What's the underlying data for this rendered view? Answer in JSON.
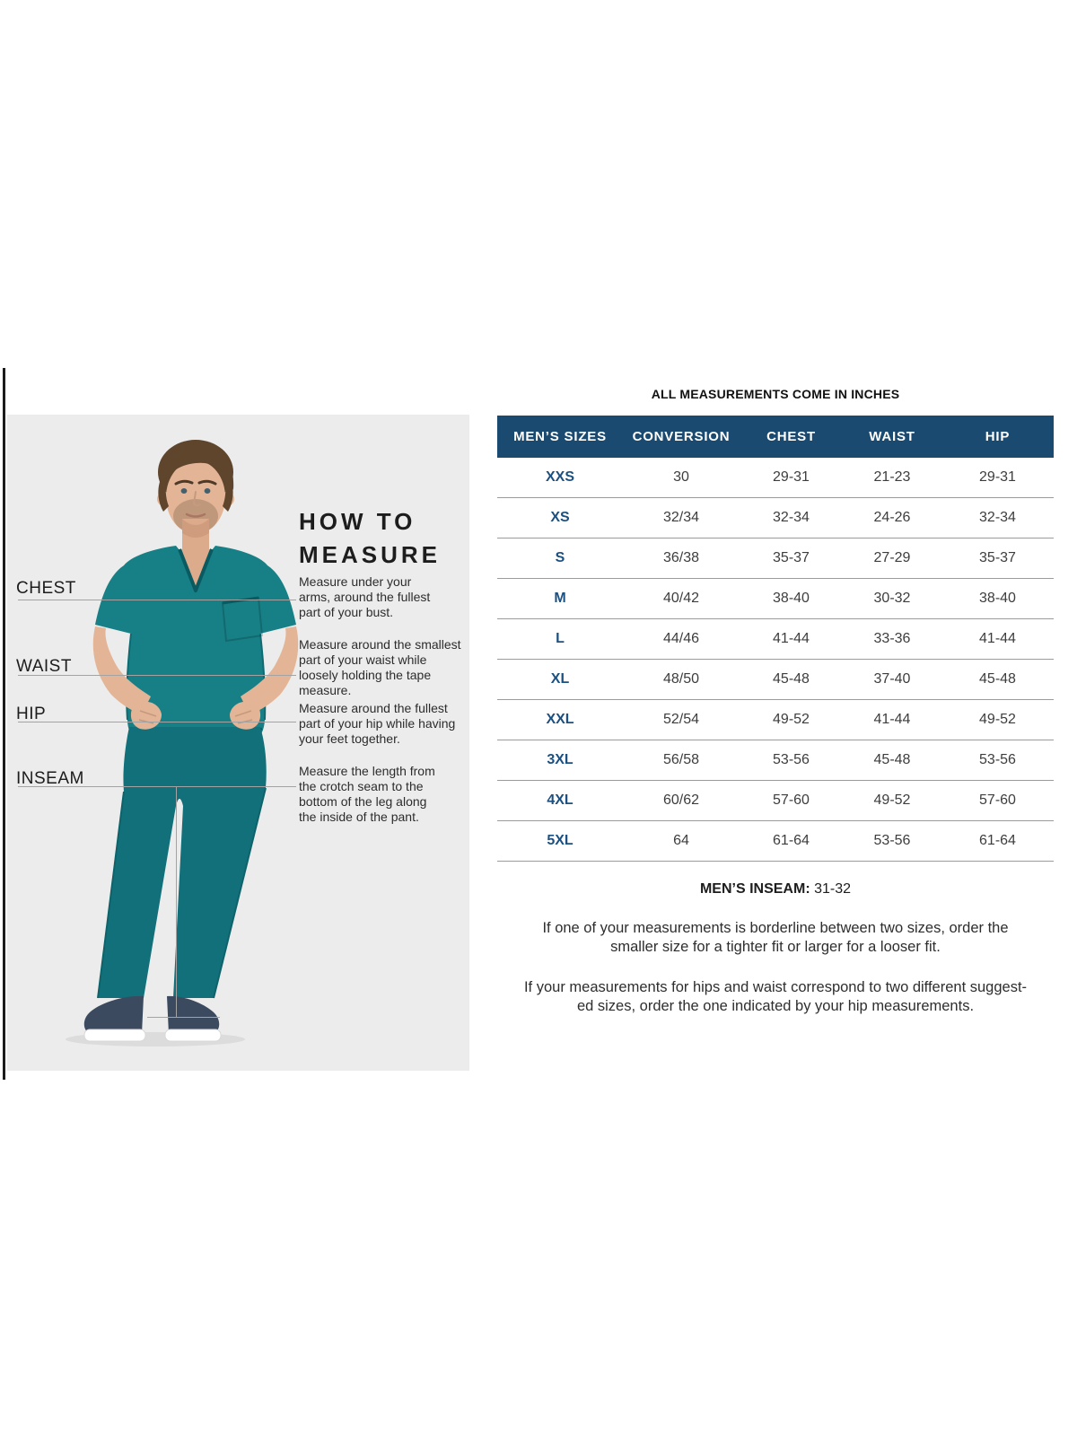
{
  "colors": {
    "navy_header": "#1A4A70",
    "size_text_navy": "#1C5080",
    "separator_gray": "#9B9B9B",
    "photo_bg": "#ECECEC",
    "scrub_teal": "#178087"
  },
  "measure_guide": {
    "heading": "HOW TO\nMEASURE",
    "labels": [
      {
        "name": "CHEST",
        "description": "Measure under your\narms, around the fullest\npart of your bust."
      },
      {
        "name": "WAIST",
        "description": "Measure around the smallest\npart of your waist while\nloosely holding the tape\nmeasure."
      },
      {
        "name": "HIP",
        "description": "Measure around the fullest\npart of your hip while having\nyour feet together."
      },
      {
        "name": "INSEAM",
        "description": "Measure the length from\nthe crotch seam to the\nbottom of the leg along\nthe inside of the pant."
      }
    ]
  },
  "size_chart": {
    "units_note": "ALL MEASUREMENTS COME IN INCHES",
    "columns": [
      "MEN’S SIZES",
      "CONVERSION",
      "CHEST",
      "WAIST",
      "HIP"
    ],
    "rows": [
      {
        "size": "XXS",
        "conversion": "30",
        "chest": "29-31",
        "waist": "21-23",
        "hip": "29-31"
      },
      {
        "size": "XS",
        "conversion": "32/34",
        "chest": "32-34",
        "waist": "24-26",
        "hip": "32-34"
      },
      {
        "size": "S",
        "conversion": "36/38",
        "chest": "35-37",
        "waist": "27-29",
        "hip": "35-37"
      },
      {
        "size": "M",
        "conversion": "40/42",
        "chest": "38-40",
        "waist": "30-32",
        "hip": "38-40"
      },
      {
        "size": "L",
        "conversion": "44/46",
        "chest": "41-44",
        "waist": "33-36",
        "hip": "41-44"
      },
      {
        "size": "XL",
        "conversion": "48/50",
        "chest": "45-48",
        "waist": "37-40",
        "hip": "45-48"
      },
      {
        "size": "XXL",
        "conversion": "52/54",
        "chest": "49-52",
        "waist": "41-44",
        "hip": "49-52"
      },
      {
        "size": "3XL",
        "conversion": "56/58",
        "chest": "53-56",
        "waist": "45-48",
        "hip": "53-56"
      },
      {
        "size": "4XL",
        "conversion": "60/62",
        "chest": "57-60",
        "waist": "49-52",
        "hip": "57-60"
      },
      {
        "size": "5XL",
        "conversion": "64",
        "chest": "61-64",
        "waist": "53-56",
        "hip": "61-64"
      }
    ],
    "inseam_label": "MEN’S INSEAM:",
    "inseam_value": "31-32",
    "notes": [
      "If one of your measurements is borderline between two sizes, order the\nsmaller size for a tighter fit or larger for a looser fit.",
      "If your measurements for hips and waist correspond to two different suggest-\ned sizes, order the one indicated by your hip measurements."
    ]
  }
}
